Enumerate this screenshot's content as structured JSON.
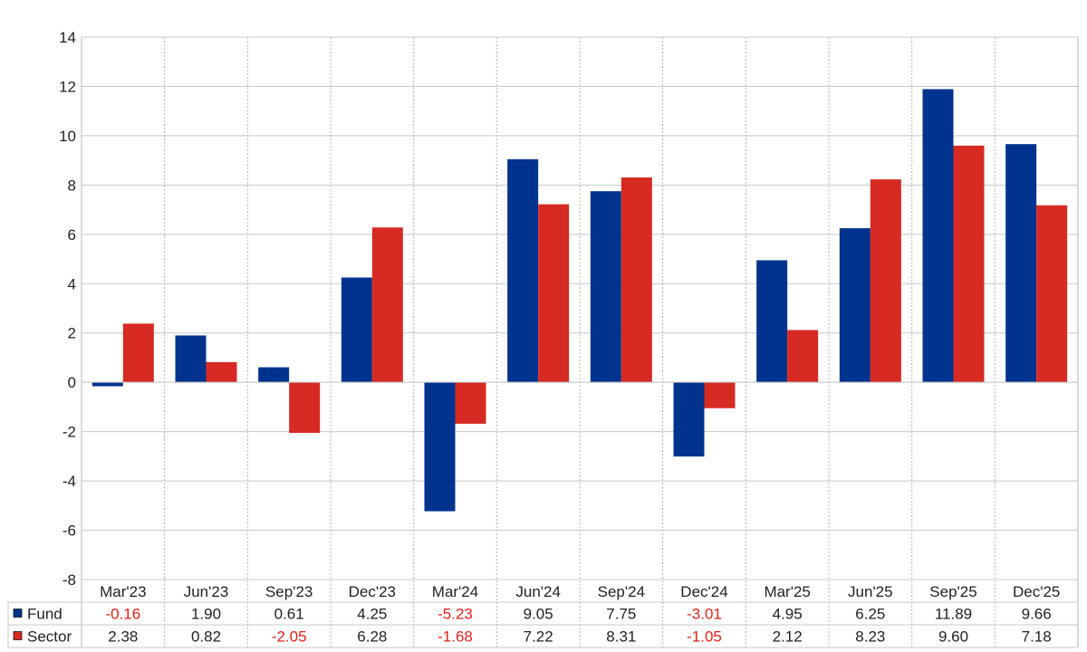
{
  "chart_data": {
    "type": "bar",
    "categories": [
      "Mar'23",
      "Jun'23",
      "Sep'23",
      "Dec'23",
      "Mar'24",
      "Jun'24",
      "Sep'24",
      "Dec'24",
      "Mar'25",
      "Jun'25",
      "Sep'25",
      "Dec'25"
    ],
    "series": [
      {
        "name": "Fund",
        "color": "#00338d",
        "values": [
          -0.16,
          1.9,
          0.61,
          4.25,
          -5.23,
          9.05,
          7.75,
          -3.01,
          4.95,
          6.25,
          11.89,
          9.66
        ],
        "labels": [
          "-0.16",
          "1.90",
          "0.61",
          "4.25",
          "-5.23",
          "9.05",
          "7.75",
          "-3.01",
          "4.95",
          "6.25",
          "11.89",
          "9.66"
        ]
      },
      {
        "name": "Sector",
        "color": "#d62a22",
        "values": [
          2.38,
          0.82,
          -2.05,
          6.28,
          -1.68,
          7.22,
          8.31,
          -1.05,
          2.12,
          8.23,
          9.6,
          7.18
        ],
        "labels": [
          "2.38",
          "0.82",
          "-2.05",
          "6.28",
          "-1.68",
          "7.22",
          "8.31",
          "-1.05",
          "2.12",
          "8.23",
          "9.60",
          "7.18"
        ]
      }
    ],
    "y_ticks": [
      "14",
      "12",
      "10",
      "8",
      "6",
      "4",
      "2",
      "0",
      "-2",
      "-4",
      "-6",
      "-8"
    ],
    "ylim": [
      -8,
      14
    ],
    "ystep": 2,
    "grid": true,
    "legend": "data-table-left",
    "negative_color": "#e8201a"
  }
}
